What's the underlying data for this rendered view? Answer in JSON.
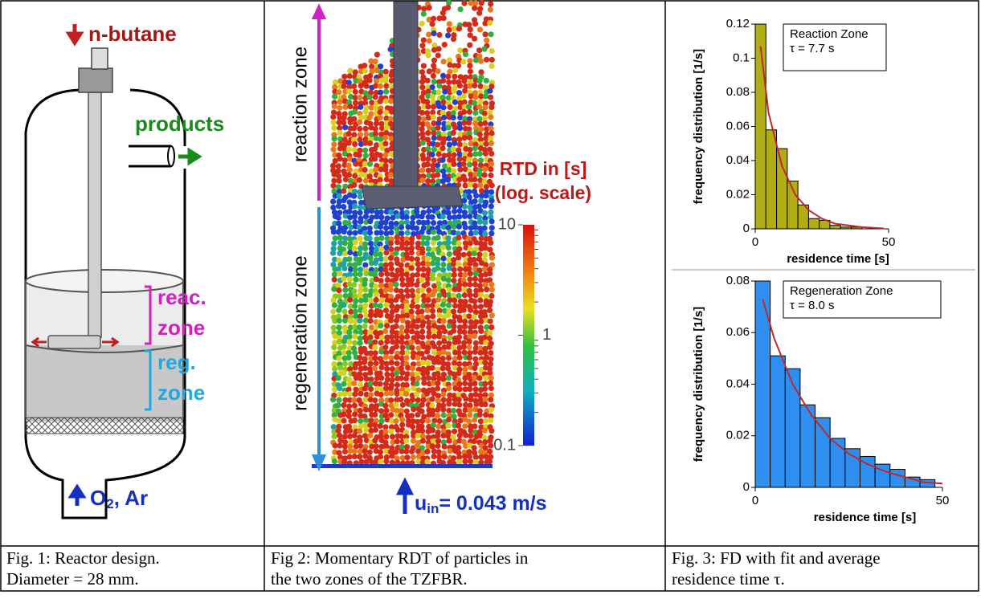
{
  "fig1": {
    "feed": "n-butane",
    "products": "products",
    "reaction_zone": [
      "reac.",
      "zone"
    ],
    "regeneration_zone": [
      "reg.",
      "zone"
    ],
    "inlet": {
      "symbol": "O",
      "sub": "2",
      "rest": ", Ar"
    }
  },
  "fig2": {
    "reaction_zone": "reaction zone",
    "regeneration_zone": "regeneration zone",
    "colorbar": {
      "title": [
        "RTD in [s]",
        "(log. scale)"
      ],
      "lim": [
        0.1,
        10
      ],
      "ticks": [
        10,
        1,
        0.1
      ],
      "log": true
    },
    "inflow": {
      "symbol": "u",
      "sub": "in",
      "rest": "= 0.043 m/s"
    }
  },
  "fig3": {
    "charts": [
      {
        "type": "histogram",
        "legend": {
          "title": "Reaction Zone",
          "tau": "τ = 7.7 s"
        },
        "ylabel": "frequency distribution [1/s]",
        "xlabel": "residence time [s]",
        "bins": [
          0,
          4,
          8,
          12,
          16,
          20,
          24,
          28,
          32,
          36,
          40,
          44,
          48
        ],
        "values": [
          0.12,
          0.058,
          0.047,
          0.028,
          0.014,
          0.006,
          0.005,
          0.002,
          0.001,
          0.001,
          0,
          0
        ],
        "color": "#b3ad14",
        "xlim": [
          0,
          50
        ],
        "ylim": [
          0,
          0.12
        ],
        "xticks": [
          0,
          50
        ],
        "yticks": [
          0,
          0.02,
          0.04,
          0.06,
          0.08,
          0.1,
          0.12
        ],
        "fit": {
          "color": "#c0282c",
          "x": [
            2,
            5,
            10,
            15,
            20,
            25,
            30,
            35,
            40,
            45,
            48
          ],
          "y": [
            0.107,
            0.068,
            0.037,
            0.02,
            0.011,
            0.006,
            0.003,
            0.002,
            0.001,
            0.0005,
            0.0003
          ]
        }
      },
      {
        "type": "histogram",
        "legend": {
          "title": "Regeneration Zone",
          "tau": "τ = 8.0 s"
        },
        "ylabel": "frequency distribution [1/s]",
        "xlabel": "residence time [s]",
        "bins": [
          0,
          4,
          8,
          12,
          16,
          20,
          24,
          28,
          32,
          36,
          40,
          44,
          48
        ],
        "values": [
          0.08,
          0.051,
          0.046,
          0.032,
          0.027,
          0.019,
          0.015,
          0.012,
          0.009,
          0.007,
          0.004,
          0.003
        ],
        "color": "#2f8ff0",
        "xlim": [
          0,
          50
        ],
        "ylim": [
          0,
          0.08
        ],
        "xticks": [
          0,
          50
        ],
        "yticks": [
          0,
          0.02,
          0.04,
          0.06,
          0.08
        ],
        "fit": {
          "color": "#c0282c",
          "x": [
            2,
            5,
            10,
            15,
            20,
            25,
            30,
            35,
            40,
            45,
            50
          ],
          "y": [
            0.073,
            0.058,
            0.04,
            0.028,
            0.019,
            0.013,
            0.009,
            0.006,
            0.004,
            0.002,
            0.0015
          ]
        }
      }
    ]
  },
  "captions": [
    [
      "Fig. 1: Reactor design.",
      "Diameter = 28 mm."
    ],
    [
      "Fig 2: Momentary RDT of particles in",
      "the two zones of the TZFBR."
    ],
    [
      "Fig. 3: FD with fit and average",
      "residence time τ."
    ]
  ]
}
